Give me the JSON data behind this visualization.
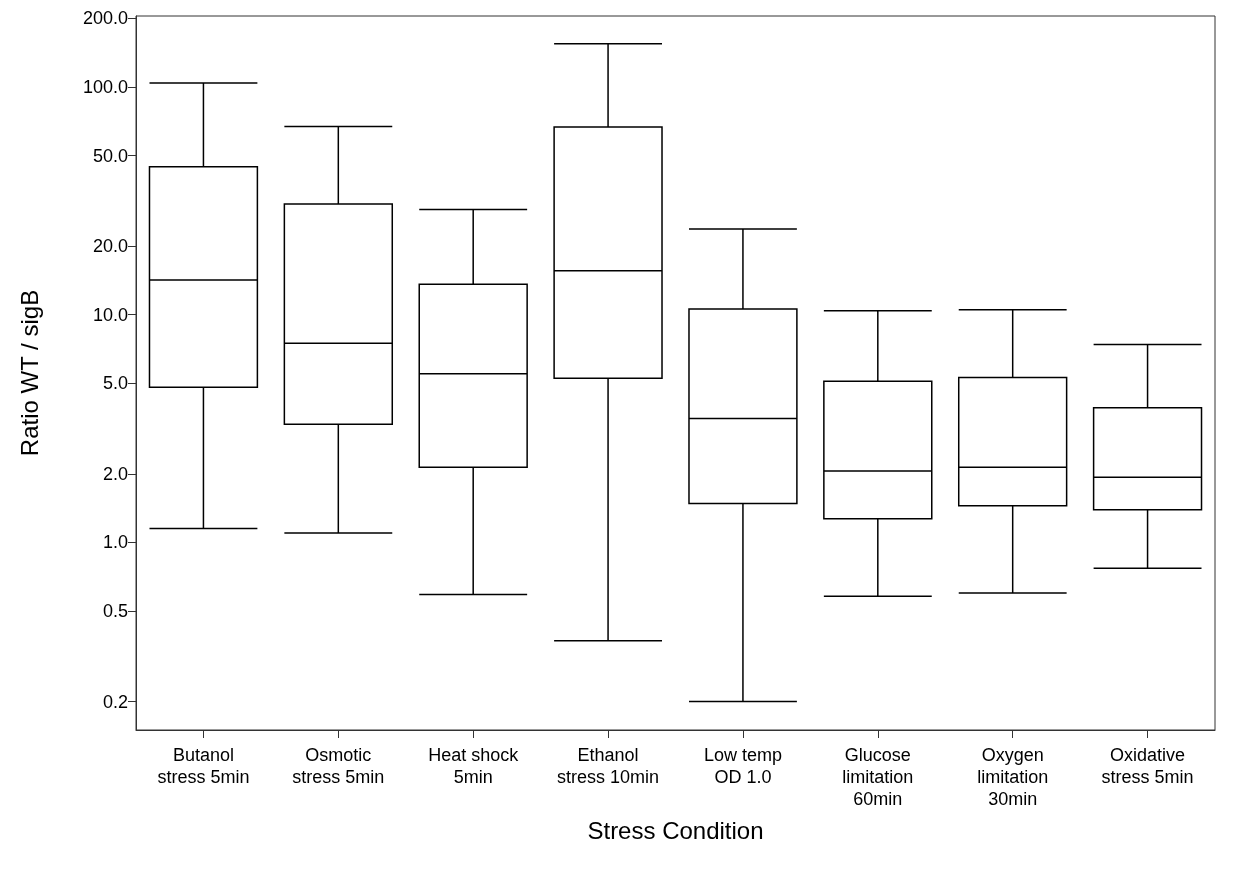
{
  "chart_data": {
    "type": "box",
    "xlabel": "Stress Condition",
    "ylabel": "Ratio WT / sigB",
    "categories": [
      "Butanol\nstress 5min",
      "Osmotic\nstress 5min",
      "Heat shock\n5min",
      "Ethanol\nstress 10min",
      "Low temp\nOD 1.0",
      "Glucose\nlimitation\n60min",
      "Oxygen\nlimitation\n30min",
      "Oxidative\nstress 5min"
    ],
    "boxes": [
      {
        "low": 1.15,
        "q1": 4.8,
        "median": 14.2,
        "q3": 44.6,
        "high": 104
      },
      {
        "low": 1.1,
        "q1": 3.3,
        "median": 7.5,
        "q3": 30.6,
        "high": 67
      },
      {
        "low": 0.59,
        "q1": 2.14,
        "median": 5.5,
        "q3": 13.6,
        "high": 29
      },
      {
        "low": 0.37,
        "q1": 5.26,
        "median": 15.6,
        "q3": 66.7,
        "high": 155
      },
      {
        "low": 0.2,
        "q1": 1.48,
        "median": 3.5,
        "q3": 10.6,
        "high": 23.8
      },
      {
        "low": 0.58,
        "q1": 1.27,
        "median": 2.06,
        "q3": 5.1,
        "high": 10.4
      },
      {
        "low": 0.6,
        "q1": 1.45,
        "median": 2.14,
        "q3": 5.3,
        "high": 10.5
      },
      {
        "low": 0.77,
        "q1": 1.39,
        "median": 1.93,
        "q3": 3.9,
        "high": 7.4
      }
    ],
    "color": "#000000",
    "log": "y",
    "ylim": [
      0.15,
      205
    ],
    "yticks": [
      0.2,
      0.5,
      {
        "value": 1,
        "label": "1.0"
      },
      {
        "value": 2,
        "label": "2.0"
      },
      {
        "value": 5,
        "label": "5.0"
      },
      {
        "value": 10,
        "label": "10.0"
      },
      {
        "value": 20,
        "label": "20.0"
      },
      {
        "value": 50,
        "label": "50.0"
      },
      {
        "value": 100,
        "label": "100.0"
      },
      {
        "value": 200,
        "label": "200.0"
      }
    ],
    "grid": false
  }
}
